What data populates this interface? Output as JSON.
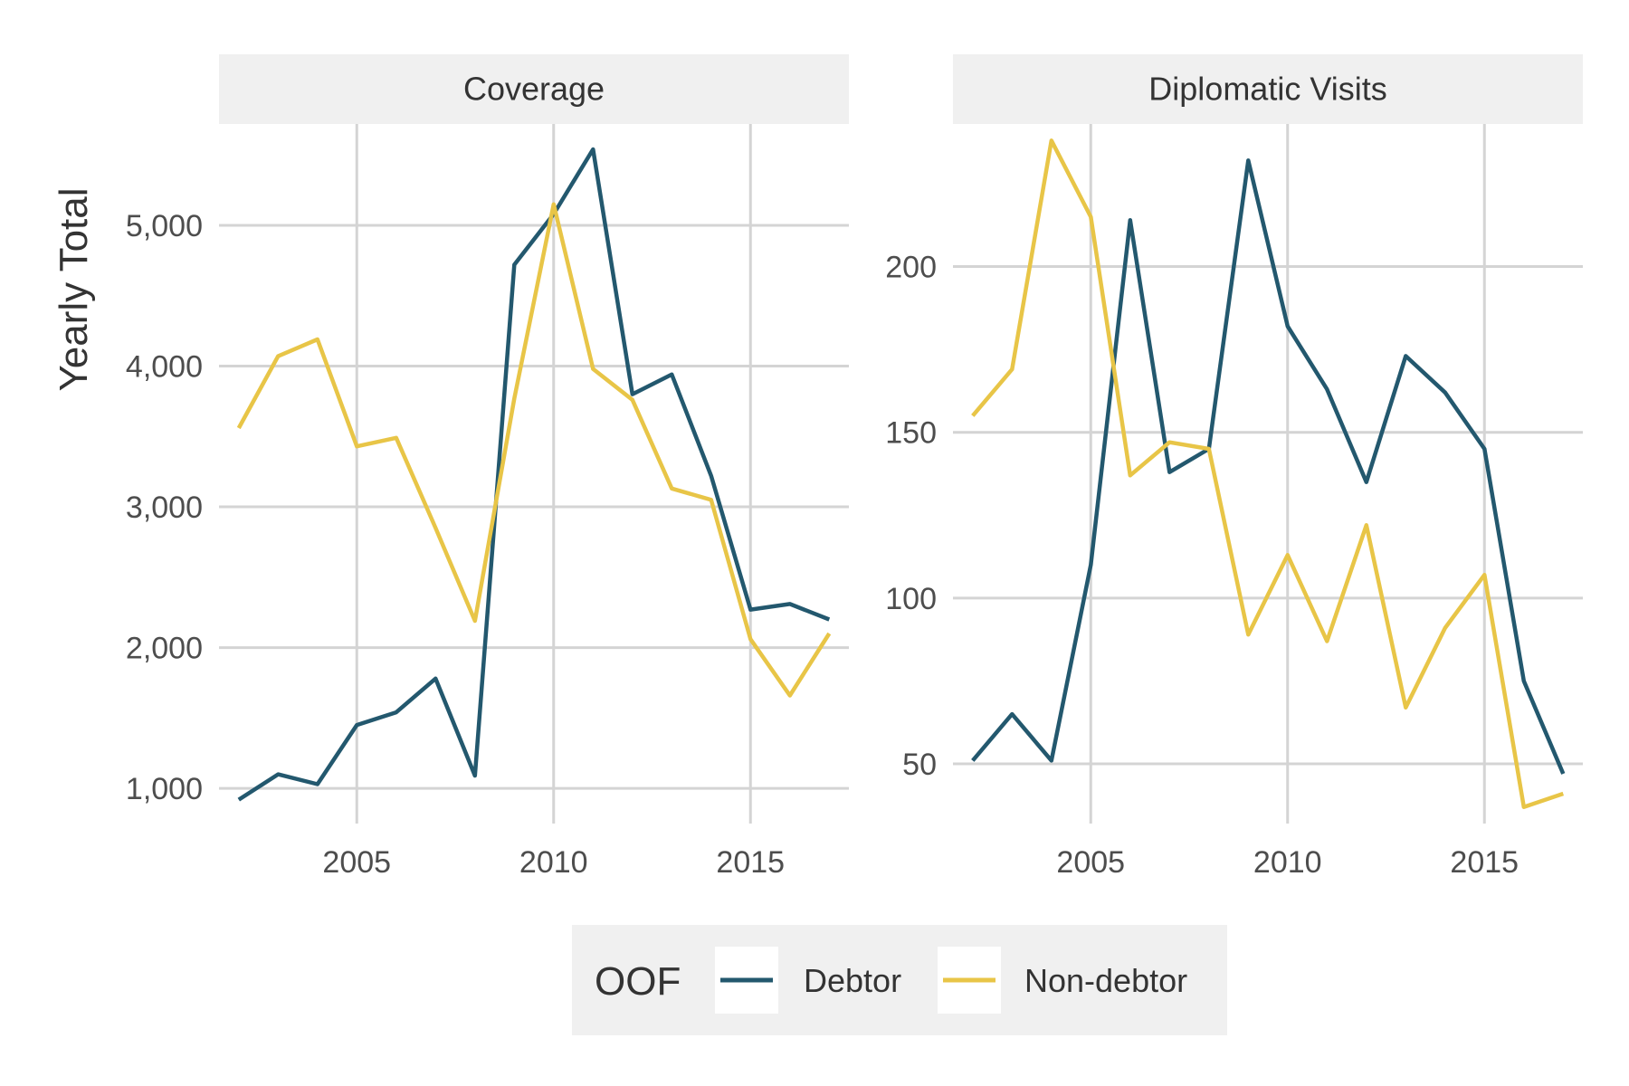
{
  "chart_data": {
    "type": "line",
    "ylabel": "Yearly Total",
    "xlabel": "",
    "legend": {
      "title": "OOF",
      "position": "bottom",
      "entries": [
        "Debtor",
        "Non-debtor"
      ]
    },
    "grid": true,
    "colors": {
      "Debtor": "#23586E",
      "Non-debtor": "#E8C547",
      "strip": "#F0F0F0",
      "grid": "#D4D4D4"
    },
    "x": [
      2002,
      2003,
      2004,
      2005,
      2006,
      2007,
      2008,
      2009,
      2010,
      2011,
      2012,
      2013,
      2014,
      2015,
      2016,
      2017
    ],
    "xlim": [
      2001.5,
      2017.5
    ],
    "x_ticks": [
      2005,
      2010,
      2015
    ],
    "x_tick_labels": [
      "2005",
      "2010",
      "2015"
    ],
    "panels": [
      {
        "title": "Coverage",
        "ylim": [
          750,
          5720
        ],
        "y_ticks": [
          1000,
          2000,
          3000,
          4000,
          5000
        ],
        "y_tick_labels": [
          "1,000",
          "2,000",
          "3,000",
          "4,000",
          "5,000"
        ],
        "series": [
          {
            "name": "Debtor",
            "values": [
              920,
              1100,
              1030,
              1450,
              1540,
              1780,
              1090,
              4720,
              5080,
              5540,
              3800,
              3940,
              3220,
              2270,
              2310,
              2200
            ]
          },
          {
            "name": "Non-debtor",
            "values": [
              3560,
              4070,
              4190,
              3430,
              3490,
              2850,
              2190,
              3770,
              5150,
              3980,
              3760,
              3130,
              3050,
              2060,
              1660,
              2100
            ]
          }
        ]
      },
      {
        "title": "Diplomatic Visits",
        "ylim": [
          32,
          243
        ],
        "y_ticks": [
          50,
          100,
          150,
          200
        ],
        "y_tick_labels": [
          "50",
          "100",
          "150",
          "200"
        ],
        "series": [
          {
            "name": "Debtor",
            "values": [
              51,
              65,
              51,
              110,
              214,
              138,
              145,
              232,
              182,
              163,
              135,
              173,
              162,
              145,
              75,
              47
            ]
          },
          {
            "name": "Non-debtor",
            "values": [
              155,
              169,
              238,
              215,
              137,
              147,
              145,
              89,
              113,
              87,
              122,
              67,
              91,
              107,
              37,
              41
            ]
          }
        ]
      }
    ]
  }
}
